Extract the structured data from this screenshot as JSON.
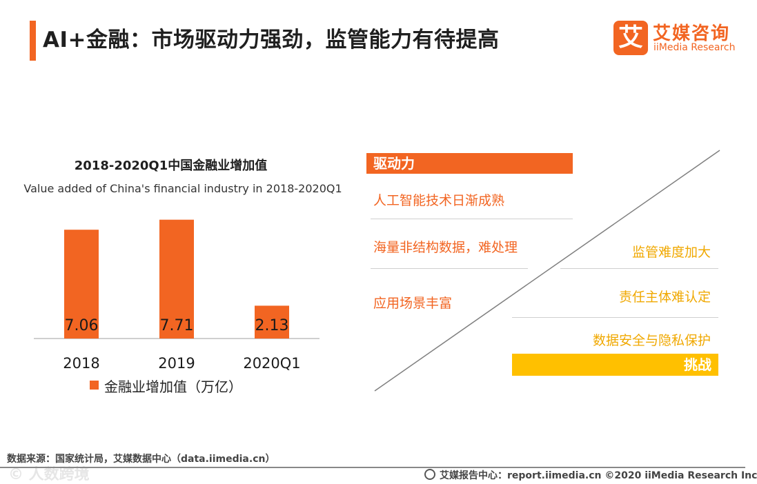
{
  "header": {
    "title": "AI+金融：市场驱动力强劲，监管能力有待提高",
    "logo_mark": "艾",
    "logo_cn": "艾媒咨询",
    "logo_en": "iiMedia Research"
  },
  "chart_data": {
    "type": "bar",
    "title": "2018-2020Q1中国金融业增加值",
    "subtitle": "Value added of China's financial industry in 2018-2020Q1",
    "categories": [
      "2018",
      "2019",
      "2020Q1"
    ],
    "series": [
      {
        "name": "金融业增加值（万亿）",
        "values": [
          7.06,
          7.71,
          2.13
        ],
        "color": "#f26522"
      }
    ],
    "data_labels": [
      "7.06",
      "7.71",
      "2.13"
    ],
    "ylim": [
      0,
      8.5
    ],
    "grid": false,
    "legend": "bottom"
  },
  "drivers": {
    "label": "驱动力",
    "items": [
      "人工智能技术日渐成熟",
      "海量非结构数据，难处理",
      "应用场景丰富"
    ]
  },
  "challenges": {
    "label": "挑战",
    "items": [
      "监管难度加大",
      "责任主体难认定",
      "数据安全与隐私保护"
    ]
  },
  "colors": {
    "accent": "#f26522",
    "challenge": "#ffc000"
  },
  "footer": {
    "source": "数据来源：国家统计局，艾媒数据中心（data.iimedia.cn）",
    "watermark": "© 人数跨境",
    "right": "艾媒报告中心：report.iimedia.cn   ©2020  iiMedia Research  Inc"
  }
}
